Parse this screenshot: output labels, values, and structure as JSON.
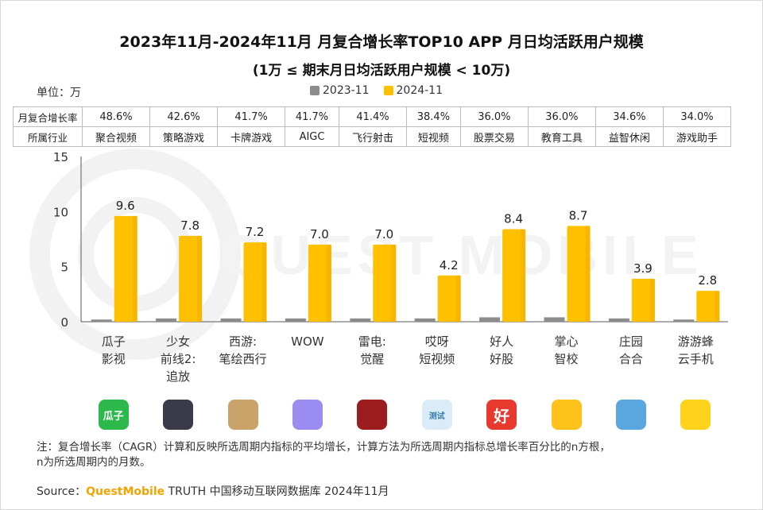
{
  "title": "2023年11月-2024年11月 月复合增长率TOP10 APP 月日均活跃用户规模",
  "subtitle": "(1万 ≤ 期末月日均活跃用户规模 < 10万)",
  "unit_label": "单位：万",
  "legend": [
    {
      "name": "2023-11",
      "color": "#8c8c8c"
    },
    {
      "name": "2024-11",
      "color": "#ffc000"
    }
  ],
  "table": {
    "row1_header": "月复合增长率",
    "row2_header": "所属行业",
    "growth": [
      "48.6%",
      "42.6%",
      "41.7%",
      "41.7%",
      "41.4%",
      "38.4%",
      "36.0%",
      "36.0%",
      "34.6%",
      "34.0%"
    ],
    "industry": [
      "聚合视频",
      "策略游戏",
      "卡牌游戏",
      "AIGC",
      "飞行射击",
      "短视频",
      "股票交易",
      "教育工具",
      "益智休闲",
      "游戏助手"
    ]
  },
  "chart_data": {
    "type": "bar",
    "categories": [
      [
        "瓜子",
        "影视"
      ],
      [
        "少女",
        "前线2:",
        "追放"
      ],
      [
        "西游:",
        "笔绘西行"
      ],
      [
        "WOW"
      ],
      [
        "雷电:",
        "觉醒"
      ],
      [
        "哎呀",
        "短视频"
      ],
      [
        "好人",
        "好股"
      ],
      [
        "掌心",
        "智校"
      ],
      [
        "庄园",
        "合合"
      ],
      [
        "游游蜂",
        "云手机"
      ]
    ],
    "series": [
      {
        "name": "2023-11",
        "values": [
          0.2,
          0.3,
          0.3,
          0.3,
          0.3,
          0.3,
          0.4,
          0.4,
          0.3,
          0.2
        ]
      },
      {
        "name": "2024-11",
        "values": [
          9.6,
          7.8,
          7.2,
          7.0,
          7.0,
          4.2,
          8.4,
          8.7,
          3.9,
          2.8
        ]
      }
    ],
    "data_labels": [
      "9.6",
      "7.8",
      "7.2",
      "7.0",
      "7.0",
      "4.2",
      "8.4",
      "8.7",
      "3.9",
      "2.8"
    ],
    "yticks": [
      "15",
      "10",
      "5",
      "0"
    ],
    "ylim": [
      0,
      15
    ]
  },
  "app_icons": [
    {
      "name": "guazi-icon",
      "text": "瓜子",
      "color": "#2db84c"
    },
    {
      "name": "shaonv-icon",
      "text": "",
      "color": "#3a3a4a"
    },
    {
      "name": "xiyou-icon",
      "text": "",
      "color": "#c9a36a"
    },
    {
      "name": "wow-icon",
      "text": "",
      "color": "#9a8cf0"
    },
    {
      "name": "leidian-icon",
      "text": "",
      "color": "#9b1d20"
    },
    {
      "name": "aiya-icon",
      "text": "测试",
      "color": "#d9ecf7"
    },
    {
      "name": "haoren-icon",
      "text": "好",
      "color": "#e8392f"
    },
    {
      "name": "zhangxin-icon",
      "text": "",
      "color": "#ffc21a"
    },
    {
      "name": "zhuangyuan-icon",
      "text": "",
      "color": "#5aa7e0"
    },
    {
      "name": "youyoufeng-icon",
      "text": "",
      "color": "#ffd21c"
    }
  ],
  "note_line1": "注：复合增长率（CAGR）计算和反映所选周期内指标的平均增长，计算方法为所选周期内指标总增长率百分比的n方根，",
  "note_line2": "n为所选周期内的月数。",
  "source_prefix": "Source：",
  "source_brand": "QuestMobile",
  "source_rest": " TRUTH 中国移动互联网数据库 2024年11月",
  "watermark_text": "QUEST MOBILE"
}
